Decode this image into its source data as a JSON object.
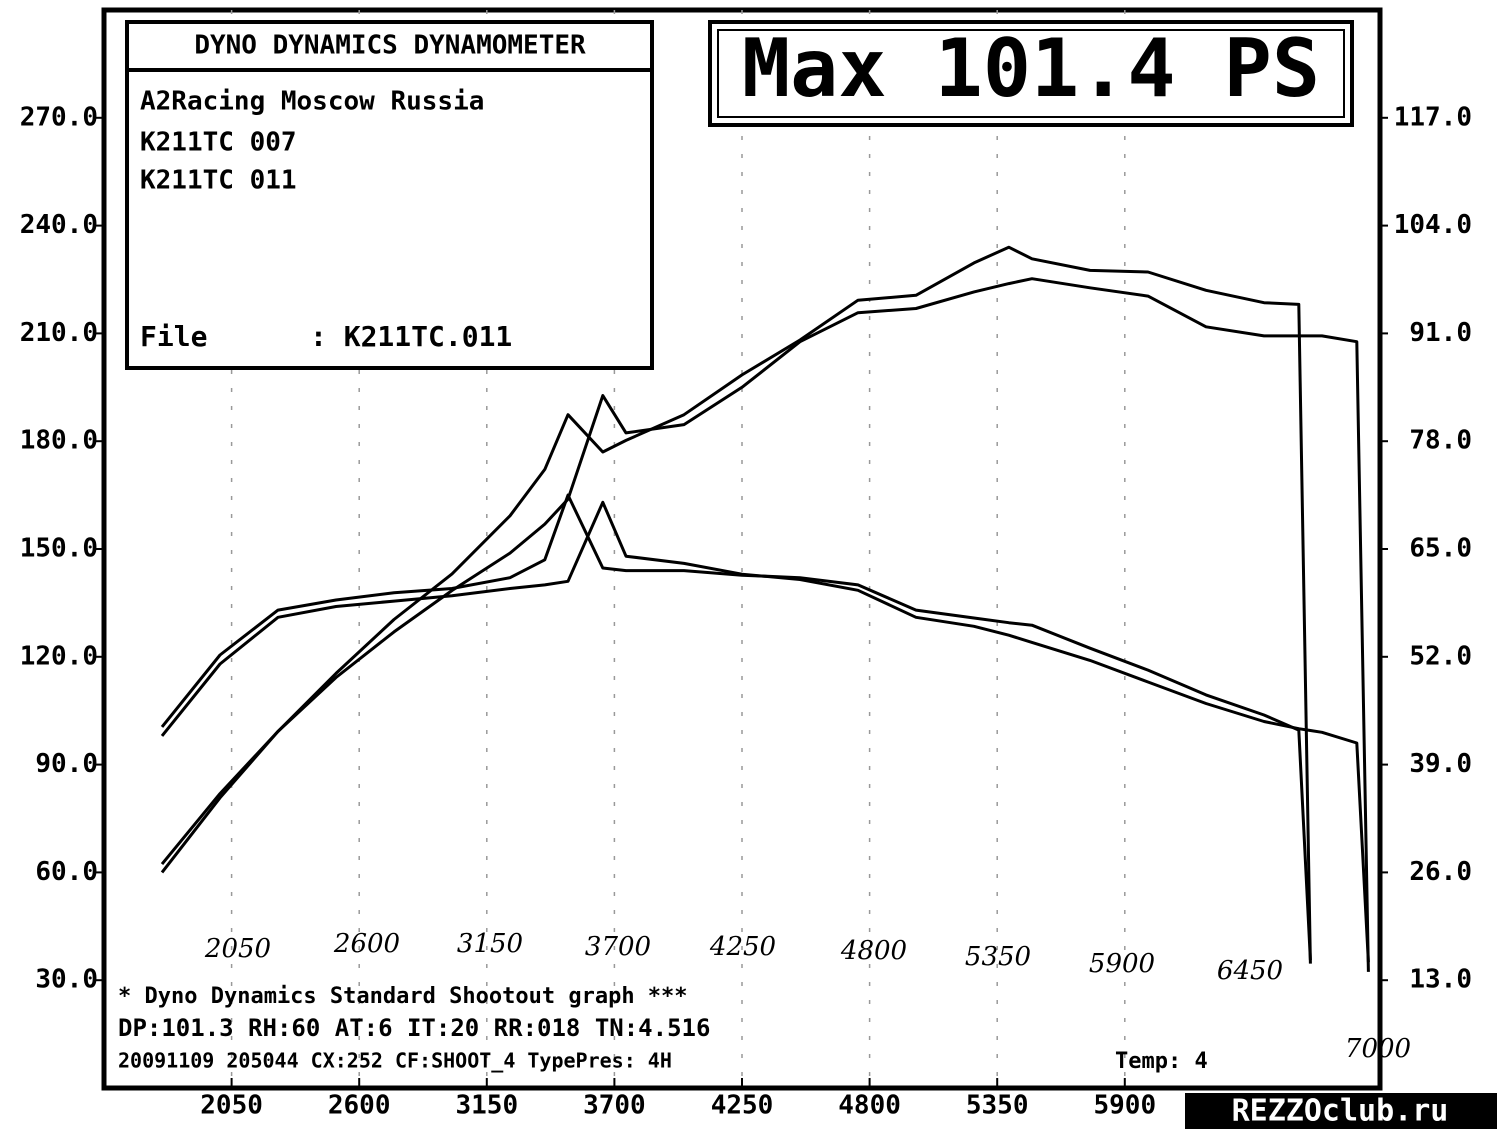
{
  "chart_data": {
    "type": "line",
    "title": "Max 101.4 PS",
    "info_header": "DYNO DYNAMICS DYNAMOMETER",
    "info_lines": [
      "A2Racing Moscow Russia",
      "K211TC 007",
      "K211TC 011"
    ],
    "file_label": "File",
    "file_value": ": K211TC.011",
    "footer_lines": [
      "* Dyno Dynamics Standard Shootout graph ***",
      "DP:101.3 RH:60 AT:6 IT:20 RR:018 TN:4.516",
      "20091109 205044 CX:252 CF:SHOOT_4 TypePres: 4H",
      "Temp: 4"
    ],
    "handwritten_labels": [
      "2050",
      "2600",
      "3150",
      "3700",
      "4250",
      "4800",
      "5350",
      "5900",
      "6450",
      "7000"
    ],
    "watermark": "REZZOclub.ru",
    "x": [
      1750,
      2000,
      2250,
      2500,
      2750,
      3000,
      3250,
      3400,
      3500,
      3650,
      3750,
      4000,
      4250,
      4500,
      4750,
      5000,
      5250,
      5400,
      5500,
      5750,
      6000,
      6250,
      6500,
      6650,
      6700,
      6750,
      6900,
      6950
    ],
    "xlim": [
      1500,
      7000
    ],
    "xticks": [
      2050,
      2600,
      3150,
      3700,
      4250,
      4800,
      5350,
      5900
    ],
    "ylim": [
      0,
      300
    ],
    "yticks": [
      {
        "value": 30,
        "label": "30.0"
      },
      {
        "value": 60,
        "label": "60.0"
      },
      {
        "value": 90,
        "label": "90.0"
      },
      {
        "value": 120,
        "label": "120.0"
      },
      {
        "value": 150,
        "label": "150.0"
      },
      {
        "value": 180,
        "label": "180.0"
      },
      {
        "value": 210,
        "label": "210.0"
      },
      {
        "value": 240,
        "label": "240.0"
      },
      {
        "value": 270,
        "label": "270.0"
      }
    ],
    "y2lim": [
      0,
      130
    ],
    "y2ticks": [
      {
        "value": 13,
        "label": "13.0"
      },
      {
        "value": 26,
        "label": "26.0"
      },
      {
        "value": 39,
        "label": "39.0"
      },
      {
        "value": 52,
        "label": "52.0"
      },
      {
        "value": 65,
        "label": "65.0"
      },
      {
        "value": 78,
        "label": "78.0"
      },
      {
        "value": 91,
        "label": "91.0"
      },
      {
        "value": 104,
        "label": "104.0"
      },
      {
        "value": 117,
        "label": "117.0"
      }
    ],
    "grid": true,
    "series": [
      {
        "color": "#000000",
        "axis": "y2",
        "values": [
          26,
          35,
          43,
          50,
          56.5,
          62,
          69,
          74.6,
          81.2,
          76.7,
          78.1,
          81.2,
          86,
          90.2,
          95,
          95.6,
          99.5,
          101.4,
          100,
          98.6,
          98.4,
          96.2,
          94.7,
          94.5,
          15,
          null,
          null,
          null
        ]
      },
      {
        "color": "#000000",
        "axis": "y2",
        "values": [
          27,
          35.5,
          43,
          49.5,
          55,
          60,
          64.5,
          68,
          71,
          83.5,
          79,
          80,
          84.5,
          90,
          93.5,
          94,
          96,
          97,
          97.6,
          96.5,
          95.5,
          91.8,
          90.7,
          90.7,
          90.7,
          90.7,
          90,
          14
        ]
      },
      {
        "color": "#000000",
        "values": [
          100.5,
          120.5,
          133,
          135.8,
          137.8,
          139,
          142,
          147,
          165,
          144.7,
          144,
          144,
          142.7,
          142,
          140,
          133,
          130.8,
          129.5,
          128.8,
          122.4,
          116.3,
          109.4,
          103.8,
          99.6,
          35.6,
          null,
          null,
          null
        ]
      },
      {
        "color": "#000000",
        "values": [
          98,
          118,
          131,
          134,
          135.5,
          137,
          139,
          140,
          141,
          163,
          148,
          146,
          143,
          141.5,
          138.5,
          131,
          128.5,
          126,
          124,
          119,
          113,
          107,
          102,
          100,
          99.5,
          99,
          96,
          35
        ]
      }
    ]
  }
}
